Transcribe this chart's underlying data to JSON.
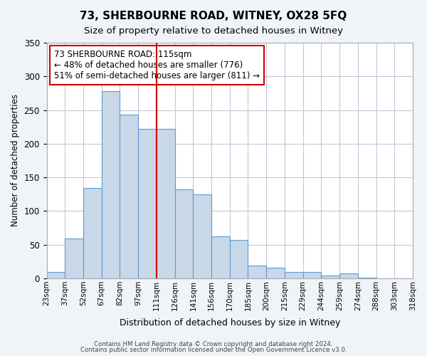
{
  "title": "73, SHERBOURNE ROAD, WITNEY, OX28 5FQ",
  "subtitle": "Size of property relative to detached houses in Witney",
  "xlabel": "Distribution of detached houses by size in Witney",
  "ylabel": "Number of detached properties",
  "bin_labels": [
    "23sqm",
    "37sqm",
    "52sqm",
    "67sqm",
    "82sqm",
    "97sqm",
    "111sqm",
    "126sqm",
    "141sqm",
    "156sqm",
    "170sqm",
    "185sqm",
    "200sqm",
    "215sqm",
    "229sqm",
    "244sqm",
    "259sqm",
    "274sqm",
    "288sqm",
    "303sqm",
    "318sqm"
  ],
  "bar_values": [
    10,
    59,
    134,
    278,
    243,
    222,
    222,
    132,
    125,
    62,
    57,
    19,
    16,
    9,
    9,
    4,
    7,
    1,
    0,
    0
  ],
  "bar_color": "#c8d8e8",
  "bar_edge_color": "#5b9bd5",
  "vline_x": 6.0,
  "vline_color": "#cc0000",
  "ylim": [
    0,
    350
  ],
  "yticks": [
    0,
    50,
    100,
    150,
    200,
    250,
    300,
    350
  ],
  "annotation_title": "73 SHERBOURNE ROAD: 115sqm",
  "annotation_line1": "← 48% of detached houses are smaller (776)",
  "annotation_line2": "51% of semi-detached houses are larger (811) →",
  "annotation_box_color": "#ffffff",
  "annotation_box_edge": "#cc0000",
  "footer1": "Contains HM Land Registry data © Crown copyright and database right 2024.",
  "footer2": "Contains public sector information licensed under the Open Government Licence v3.0.",
  "background_color": "#f0f4f8",
  "plot_bg_color": "#ffffff",
  "grid_color": "#c0c8d8"
}
